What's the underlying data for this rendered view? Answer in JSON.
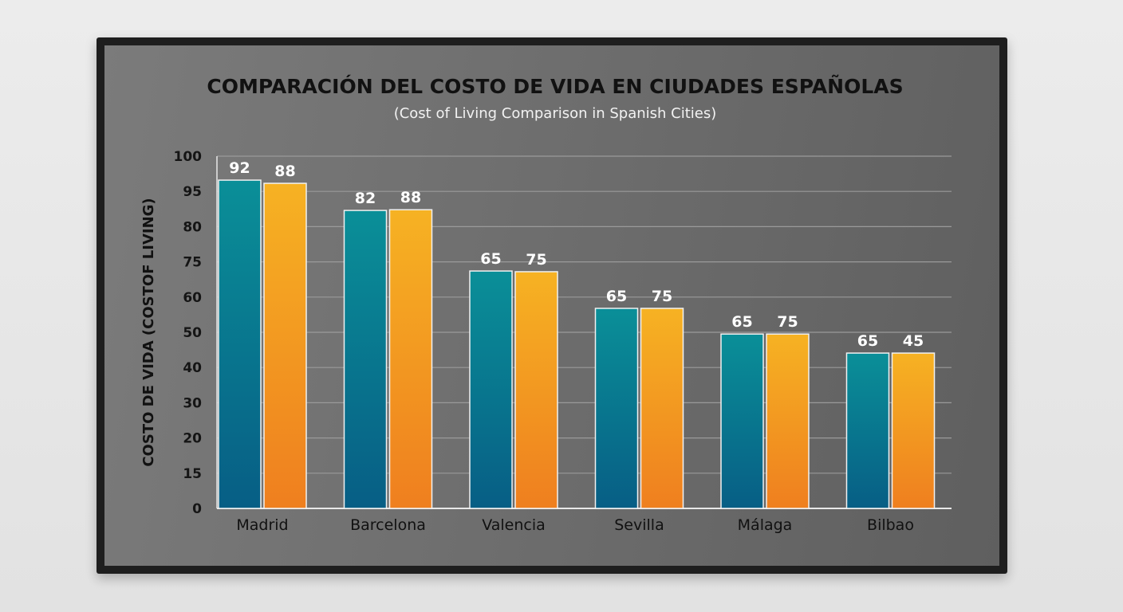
{
  "chart_data": {
    "type": "bar",
    "title": "COMPARACIÓN DEL COSTO DE VIDA EN CIUDADES ESPAÑOLAS",
    "subtitle": "(Cost of Living Comparison in Spanish Cities)",
    "xlabel": "",
    "ylabel": "COSTO DE VIDA (COSTOF LIVING)",
    "y_tick_labels": [
      "0",
      "15",
      "20",
      "30",
      "40",
      "50",
      "60",
      "75",
      "80",
      "95",
      "100"
    ],
    "grid": true,
    "legend": "none",
    "categories": [
      "Madrid",
      "Barcelona",
      "Valencia",
      "Sevilla",
      "Málaga",
      "Bilbao"
    ],
    "series": [
      {
        "color": "#0a8f98",
        "color_bottom": "#075e85",
        "values": [
          92,
          82,
          65,
          65,
          65,
          65
        ],
        "axis_fraction": [
          0.932,
          0.846,
          0.674,
          0.568,
          0.495,
          0.441
        ]
      },
      {
        "color": "#f6b223",
        "color_bottom": "#ef7f1f",
        "values": [
          88,
          88,
          75,
          75,
          75,
          45
        ],
        "axis_fraction": [
          0.923,
          0.848,
          0.672,
          0.568,
          0.495,
          0.441
        ]
      }
    ]
  }
}
